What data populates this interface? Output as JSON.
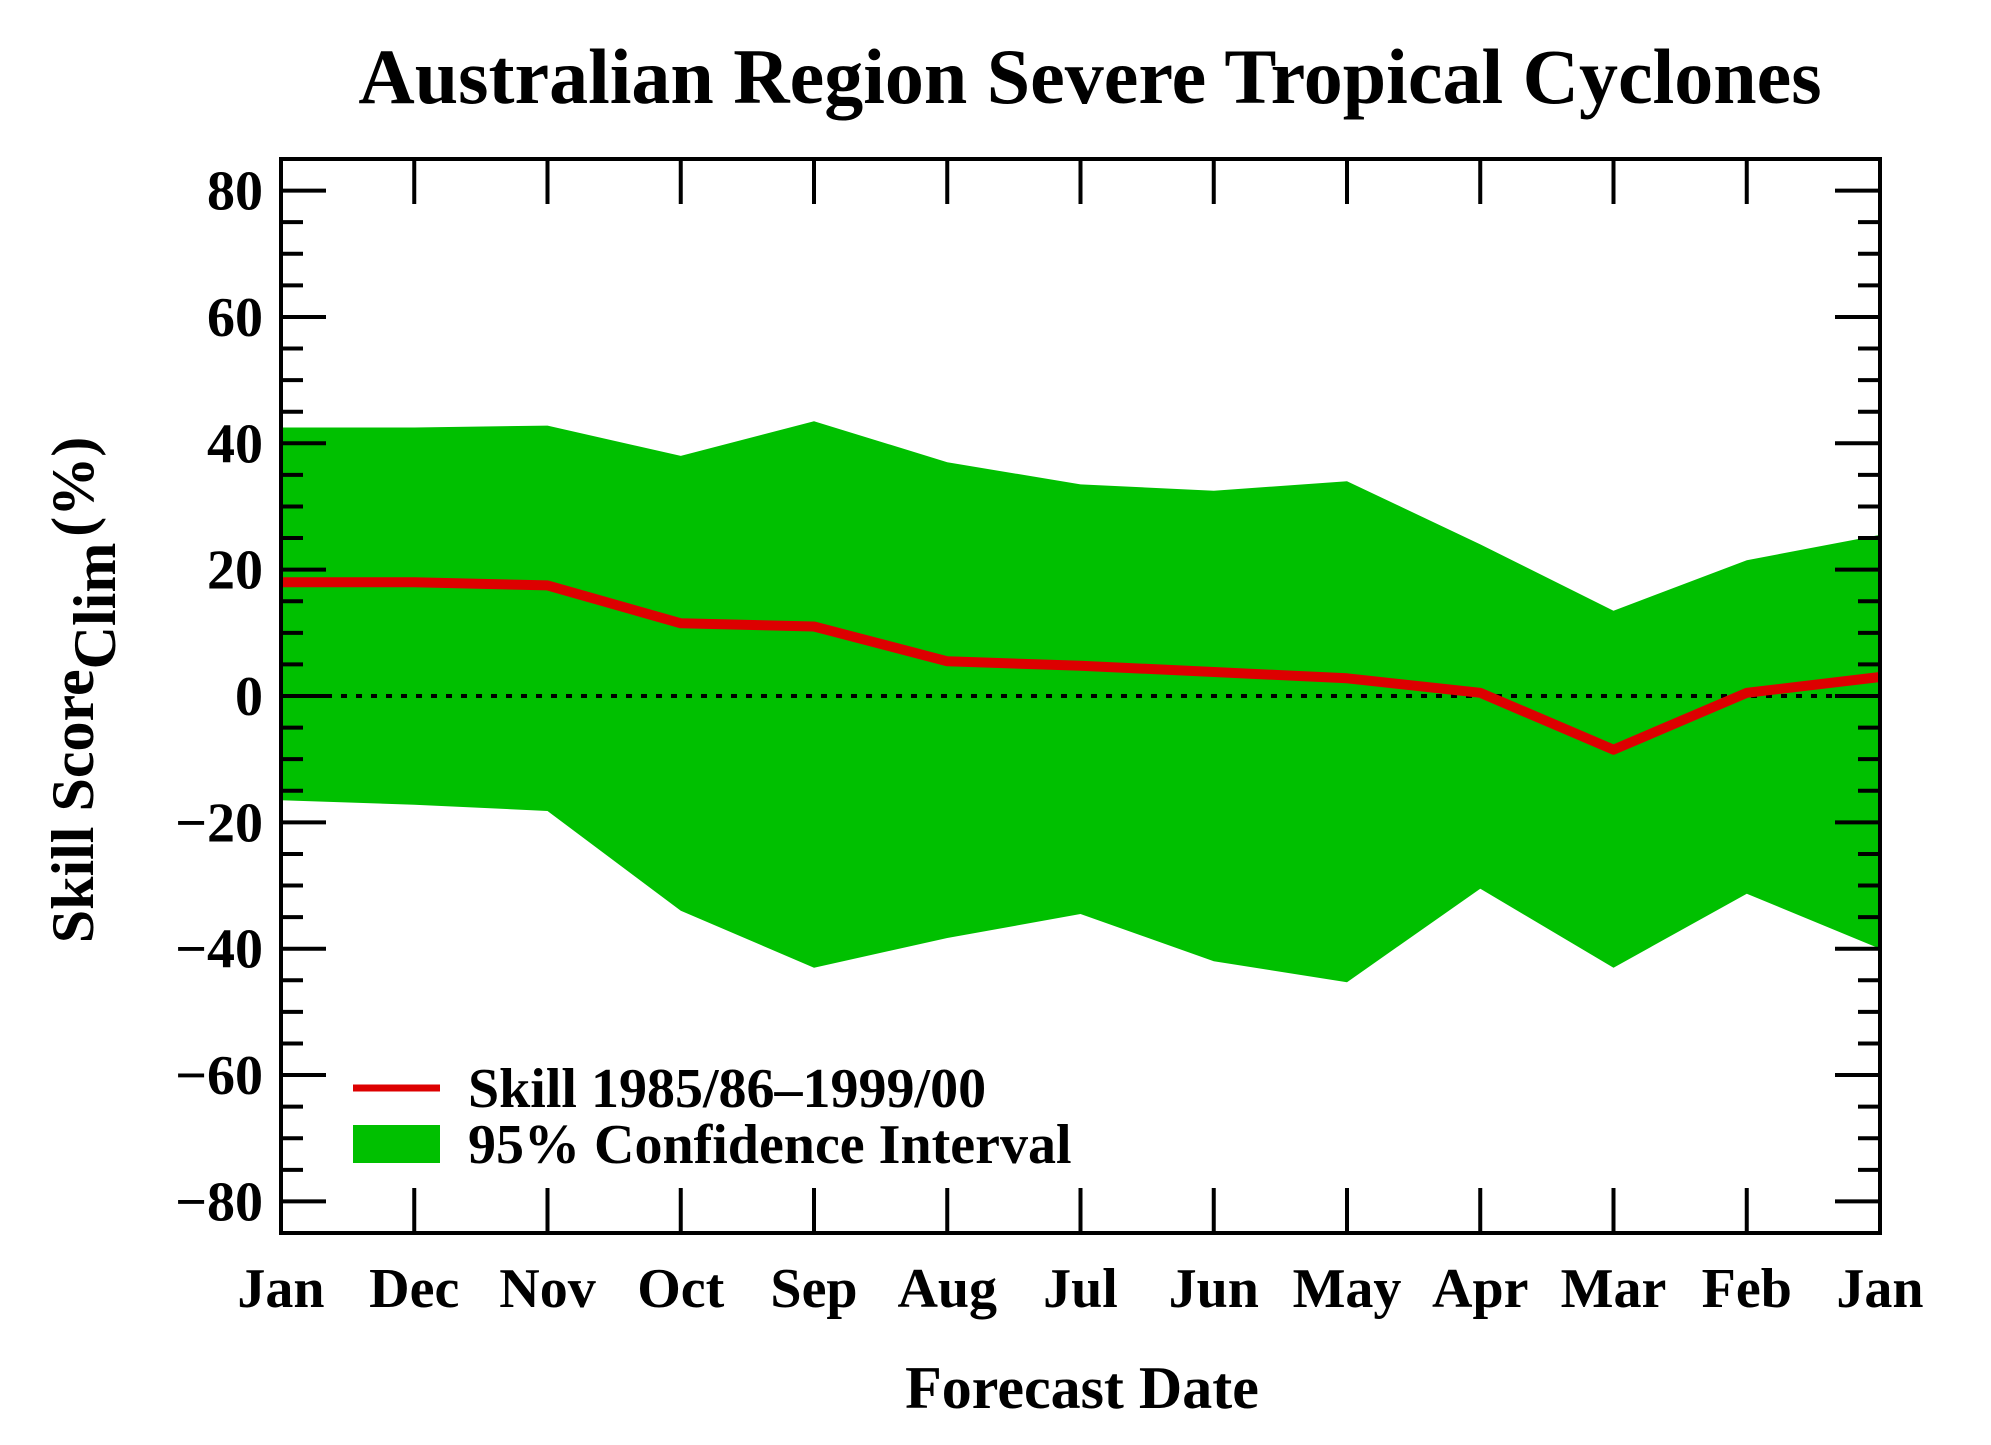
{
  "chart_data": {
    "type": "area",
    "title": "Australian Region Severe Tropical Cyclones",
    "xlabel": "Forecast Date",
    "ylabel": {
      "main": "Skill Score",
      "subscript": "Clim",
      "unit": "(%)"
    },
    "categories": [
      "Jan",
      "Dec",
      "Nov",
      "Oct",
      "Sep",
      "Aug",
      "Jul",
      "Jun",
      "May",
      "Apr",
      "Mar",
      "Feb",
      "Jan"
    ],
    "ylim": [
      -85,
      85
    ],
    "yticks": [
      -80,
      -60,
      -40,
      -20,
      0,
      20,
      40,
      60,
      80
    ],
    "ytick_labels": [
      "−80",
      "−60",
      "−40",
      "−20",
      "0",
      "20",
      "40",
      "60",
      "80"
    ],
    "series": [
      {
        "name": "Skill 1985/86–1999/00",
        "kind": "line",
        "color": "#dd0000",
        "values": [
          18,
          18,
          17.5,
          11.5,
          11,
          5.5,
          4.8,
          3.8,
          2.8,
          0.5,
          -8.5,
          0.5,
          3
        ]
      },
      {
        "name": "95% Confidence Interval",
        "kind": "band",
        "color": "#00c000",
        "upper": [
          42.5,
          42.5,
          42.8,
          38,
          43.5,
          37,
          33.5,
          32.5,
          34,
          24,
          13.5,
          21.5,
          25.5
        ],
        "lower": [
          -16.5,
          -17.2,
          -18.2,
          -34,
          -43,
          -38.3,
          -34.5,
          -42,
          -45.3,
          -30.5,
          -43,
          -31.3,
          -40
        ]
      }
    ],
    "reference_line": {
      "y": 0,
      "style": "dotted"
    },
    "grid": false,
    "legend_position": "bottom-left"
  }
}
